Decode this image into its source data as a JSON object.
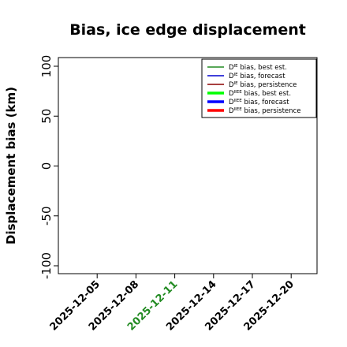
{
  "chart_data": {
    "type": "line",
    "title": "Bias, ice edge displacement",
    "xlabel": "",
    "ylabel": "Displacement bias (km)",
    "ylim": [
      -100,
      100
    ],
    "yticks": [
      "100",
      "50",
      "0",
      "-50",
      "-100"
    ],
    "xlim": [
      "2025-12-02",
      "2025-12-22"
    ],
    "xticks": [
      "2025-12-05",
      "2025-12-08",
      "2025-12-11",
      "2025-12-14",
      "2025-12-17",
      "2025-12-20"
    ],
    "highlight_tick": "2025-12-11",
    "highlight_color": "#228b22",
    "grid": false,
    "legend_position": "top-right",
    "series": [
      {
        "label_main": "D",
        "label_sup": "IE",
        "label_rest": " bias, best est.",
        "color": "#228b22",
        "width": "thin",
        "values": []
      },
      {
        "label_main": "D",
        "label_sup": "IE",
        "label_rest": " bias, forecast",
        "color": "#0000cd",
        "width": "thin",
        "values": []
      },
      {
        "label_main": "D",
        "label_sup": "IE",
        "label_rest": " bias, persistence",
        "color": "#8b0000",
        "width": "thin",
        "values": []
      },
      {
        "label_main": "D",
        "label_sup": "IIEE",
        "label_rest": " bias, best est.",
        "color": "#00ff00",
        "width": "thick",
        "values": []
      },
      {
        "label_main": "D",
        "label_sup": "IIEE",
        "label_rest": " bias, forecast",
        "color": "#0000ff",
        "width": "thick",
        "values": []
      },
      {
        "label_main": "D",
        "label_sup": "IIEE",
        "label_rest": " bias, persistence",
        "color": "#ff0000",
        "width": "thick",
        "values": []
      }
    ]
  }
}
